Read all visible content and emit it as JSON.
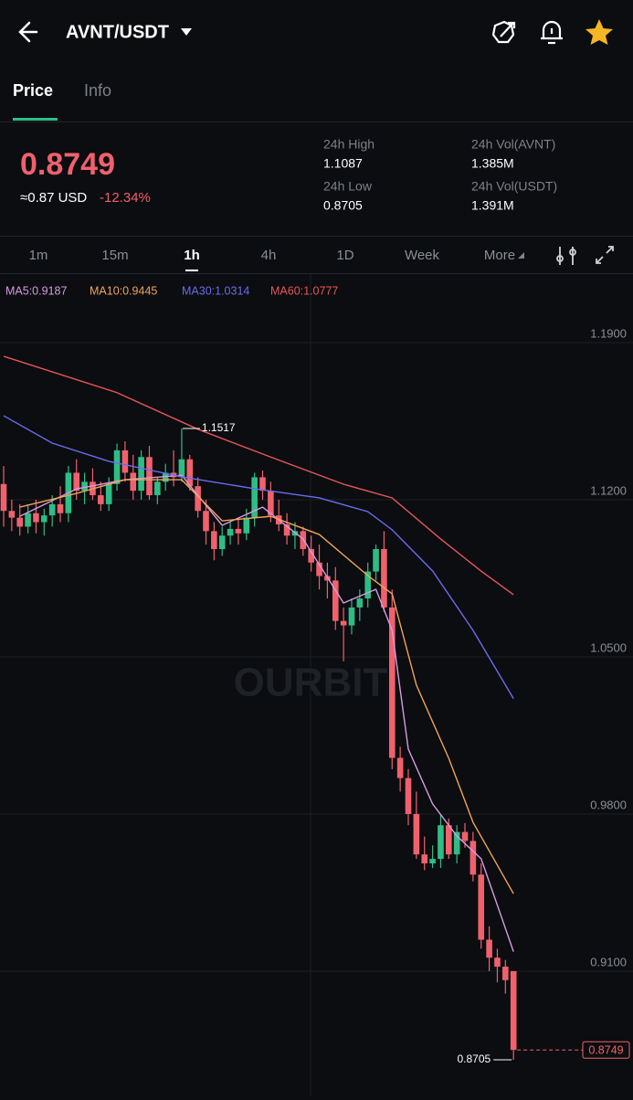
{
  "header": {
    "pair": "AVNT/USDT"
  },
  "tabs": [
    "Price",
    "Info"
  ],
  "ticker": {
    "price": "0.8749",
    "usd": "≈0.87 USD",
    "change": "-12.34%",
    "stats": [
      {
        "label": "24h High",
        "value": "1.1087"
      },
      {
        "label": "24h Low",
        "value": "0.8705"
      },
      {
        "label": "24h Vol(AVNT)",
        "value": "1.385M"
      },
      {
        "label": "24h Vol(USDT)",
        "value": "1.391M"
      }
    ]
  },
  "intervals": [
    "1m",
    "15m",
    "1h",
    "4h",
    "1D",
    "Week",
    "More"
  ],
  "watermark": "OURBIT",
  "chart_data": {
    "type": "candlestick",
    "ylim": [
      0.8583,
      1.2205
    ],
    "yticks": [
      {
        "value": 1.19,
        "label": "1.1900"
      },
      {
        "value": 1.12,
        "label": "1.1200"
      },
      {
        "value": 1.05,
        "label": "1.0500"
      },
      {
        "value": 0.98,
        "label": "0.9800"
      },
      {
        "value": 0.91,
        "label": "0.9100"
      }
    ],
    "grid": true,
    "up_color": "#2ebd85",
    "down_color": "#f0616d",
    "open": [
      1.127,
      1.115,
      1.112,
      1.108,
      1.114,
      1.11,
      1.113,
      1.118,
      1.114,
      1.132,
      1.124,
      1.128,
      1.122,
      1.118,
      1.127,
      1.142,
      1.132,
      1.124,
      1.139,
      1.122,
      1.128,
      1.132,
      1.13,
      1.138,
      1.126,
      1.115,
      1.106,
      1.098,
      1.104,
      1.107,
      1.105,
      1.112,
      1.13,
      1.124,
      1.113,
      1.109,
      1.104,
      1.106,
      1.098,
      1.092,
      1.086,
      1.084,
      1.066,
      1.064,
      1.072,
      1.076,
      1.088,
      1.098,
      1.072,
      1.005,
      0.996,
      0.98,
      0.962,
      0.958,
      0.96,
      0.975,
      0.962,
      0.972,
      0.968,
      0.953,
      0.924,
      0.916,
      0.912,
      0.91
    ],
    "high": [
      1.135,
      1.12,
      1.118,
      1.118,
      1.12,
      1.116,
      1.122,
      1.126,
      1.135,
      1.138,
      1.132,
      1.134,
      1.128,
      1.13,
      1.145,
      1.146,
      1.14,
      1.142,
      1.144,
      1.13,
      1.136,
      1.142,
      1.1517,
      1.14,
      1.13,
      1.12,
      1.11,
      1.108,
      1.11,
      1.112,
      1.116,
      1.132,
      1.133,
      1.128,
      1.12,
      1.114,
      1.11,
      1.108,
      1.104,
      1.1,
      1.092,
      1.09,
      1.072,
      1.076,
      1.08,
      1.092,
      1.1,
      1.106,
      1.08,
      1.01,
      1.0,
      0.99,
      0.97,
      0.966,
      0.98,
      0.978,
      0.975,
      0.976,
      0.972,
      0.958,
      0.93,
      0.92,
      0.915,
      0.91
    ],
    "low": [
      1.108,
      1.106,
      1.104,
      1.105,
      1.105,
      1.104,
      1.108,
      1.11,
      1.11,
      1.12,
      1.118,
      1.12,
      1.115,
      1.115,
      1.124,
      1.128,
      1.12,
      1.12,
      1.12,
      1.118,
      1.124,
      1.126,
      1.128,
      1.124,
      1.112,
      1.1,
      1.093,
      1.095,
      1.1,
      1.1,
      1.102,
      1.108,
      1.12,
      1.11,
      1.106,
      1.1,
      1.098,
      1.095,
      1.088,
      1.08,
      1.076,
      1.062,
      1.048,
      1.06,
      1.066,
      1.072,
      1.084,
      1.07,
      1.0,
      0.99,
      0.975,
      0.96,
      0.955,
      0.956,
      0.956,
      0.96,
      0.958,
      0.965,
      0.95,
      0.92,
      0.91,
      0.905,
      0.9,
      0.8705
    ],
    "close": [
      1.115,
      1.112,
      1.108,
      1.114,
      1.11,
      1.113,
      1.118,
      1.114,
      1.132,
      1.124,
      1.128,
      1.122,
      1.118,
      1.127,
      1.142,
      1.132,
      1.124,
      1.139,
      1.122,
      1.128,
      1.132,
      1.13,
      1.138,
      1.126,
      1.115,
      1.106,
      1.098,
      1.104,
      1.107,
      1.105,
      1.112,
      1.13,
      1.124,
      1.113,
      1.109,
      1.104,
      1.106,
      1.098,
      1.092,
      1.086,
      1.084,
      1.066,
      1.064,
      1.072,
      1.076,
      1.088,
      1.098,
      1.072,
      1.005,
      0.996,
      0.98,
      0.962,
      0.958,
      0.96,
      0.975,
      0.962,
      0.972,
      0.968,
      0.953,
      0.924,
      0.916,
      0.912,
      0.906,
      0.8749
    ],
    "series": [
      {
        "label": "MA5:0.9187",
        "color": "#d79be3",
        "x": [
          2,
          9,
          15,
          22,
          27,
          32,
          37,
          42,
          46,
          48,
          50,
          53,
          56,
          59,
          63
        ],
        "values": [
          1.1126,
          1.1248,
          1.1289,
          1.1309,
          1.1086,
          1.1167,
          1.1025,
          1.074,
          1.0801,
          1.0618,
          1.0089,
          0.9845,
          0.9702,
          0.9601,
          0.9187
        ]
      },
      {
        "label": "MA10:0.9445",
        "color": "#f0a35a",
        "x": [
          2,
          9,
          15,
          22,
          27,
          33,
          39,
          45,
          48,
          51,
          55,
          58,
          63
        ],
        "values": [
          1.1167,
          1.1228,
          1.1289,
          1.1289,
          1.1106,
          1.1126,
          1.1045,
          1.0862,
          1.0781,
          1.0374,
          1.0048,
          0.9763,
          0.9445
        ]
      },
      {
        "label": "MA30:1.0314",
        "color": "#6b6bf0",
        "x": [
          0,
          6,
          13,
          22,
          31,
          39,
          45,
          48,
          53,
          58,
          63
        ],
        "values": [
          1.1574,
          1.1452,
          1.1371,
          1.1302,
          1.1249,
          1.1208,
          1.1147,
          1.1066,
          1.0883,
          1.0618,
          1.0314
        ]
      },
      {
        "label": "MA60:1.0777",
        "color": "#e8555c",
        "x": [
          0,
          14,
          24,
          33,
          42,
          48,
          54,
          59,
          63
        ],
        "values": [
          1.1839,
          1.1677,
          1.1514,
          1.139,
          1.1269,
          1.1208,
          1.1025,
          1.0882,
          1.0777
        ]
      }
    ]
  }
}
